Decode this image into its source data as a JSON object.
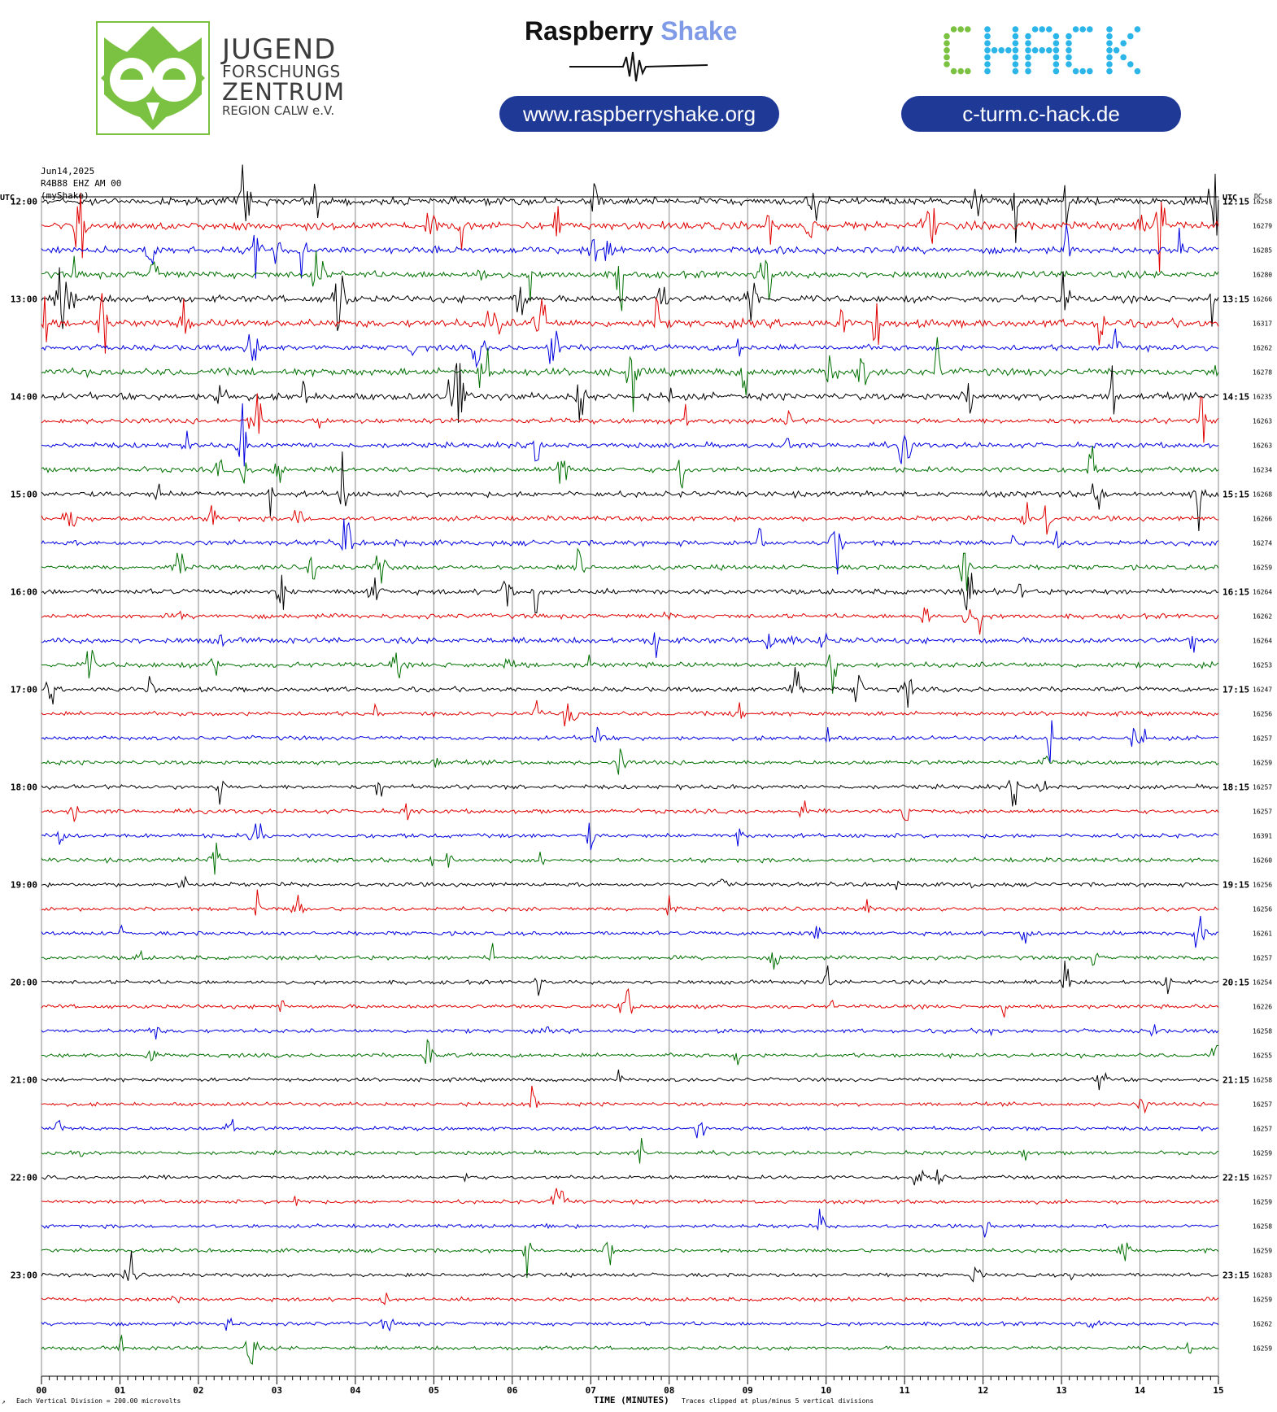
{
  "header": {
    "jfz": {
      "line1": "JUGEND",
      "line2": "FORSCHUNGS",
      "line3": "ZENTRUM",
      "line4": "REGION CALW e.V."
    },
    "rs": {
      "title_a": "Raspberry",
      "title_b": "Shake",
      "url": "www.raspberryshake.org"
    },
    "chack": {
      "logo_text": "CHACK",
      "url": "c-turm.c-hack.de"
    }
  },
  "chart_data": {
    "type": "line",
    "title": "Jun14,2025",
    "station": "R4B88 EHZ AM 00",
    "network": "(myShake)",
    "left_axis_label": "UTC",
    "right_axis_label": "UTC",
    "dc_label": "DC",
    "xlabel": "TIME (MINUTES)",
    "xlim": [
      0,
      15
    ],
    "x_ticks": [
      "00",
      "01",
      "02",
      "03",
      "04",
      "05",
      "06",
      "07",
      "08",
      "09",
      "10",
      "11",
      "12",
      "13",
      "14",
      "15"
    ],
    "footer_left": "Each Vertical Division =  200.00 microvolts",
    "footer_right": "Traces clipped at plus/minus 5 vertical divisions",
    "grid": true,
    "trace_colors": [
      "#000000",
      "#e00000",
      "#0000e0",
      "#007000"
    ],
    "rows_per_hour": 4,
    "hour_labels": [
      {
        "left": "12:00",
        "right": "12:15"
      },
      {
        "left": "13:00",
        "right": "13:15"
      },
      {
        "left": "14:00",
        "right": "14:15"
      },
      {
        "left": "15:00",
        "right": "15:15"
      },
      {
        "left": "16:00",
        "right": "16:15"
      },
      {
        "left": "17:00",
        "right": "17:15"
      },
      {
        "left": "18:00",
        "right": "18:15"
      },
      {
        "left": "19:00",
        "right": "19:15"
      },
      {
        "left": "20:00",
        "right": "20:15"
      },
      {
        "left": "21:00",
        "right": "21:15"
      },
      {
        "left": "22:00",
        "right": "22:15"
      },
      {
        "left": "23:00",
        "right": "23:15"
      }
    ],
    "dc_offsets": [
      "16258",
      "16279",
      "16285",
      "16280",
      "16266",
      "16317",
      "16262",
      "16278",
      "16235",
      "16263",
      "16263",
      "16234",
      "16268",
      "16266",
      "16274",
      "16259",
      "16264",
      "16262",
      "16264",
      "16253",
      "16247",
      "16256",
      "16257",
      "16259",
      "16257",
      "16257",
      "16391",
      "16260",
      "16256",
      "16256",
      "16261",
      "16257",
      "16254",
      "16226",
      "16258",
      "16255",
      "16258",
      "16257",
      "16257",
      "16259",
      "16257",
      "16259",
      "16258",
      "16259",
      "16283",
      "16259",
      "16262",
      "16259"
    ],
    "activity": [
      0.9,
      1.0,
      0.8,
      0.8,
      0.8,
      1.0,
      0.6,
      0.9,
      0.8,
      0.5,
      0.5,
      0.5,
      0.6,
      0.4,
      0.5,
      0.4,
      0.5,
      0.4,
      0.6,
      0.5,
      0.4,
      0.3,
      0.3,
      0.3,
      0.3,
      0.3,
      0.3,
      0.3,
      0.25,
      0.25,
      0.25,
      0.25,
      0.25,
      0.25,
      0.25,
      0.25,
      0.2,
      0.2,
      0.2,
      0.2,
      0.2,
      0.2,
      0.2,
      0.2,
      0.2,
      0.2,
      0.2,
      0.2
    ]
  }
}
